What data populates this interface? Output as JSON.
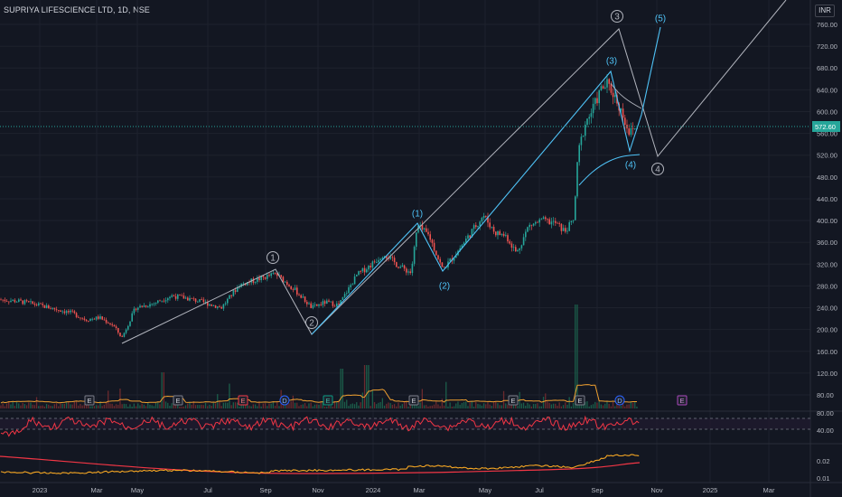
{
  "header": {
    "symbol_title": "SUPRIYA LIFESCIENCE LTD, 1D, NSE",
    "currency": "INR"
  },
  "colors": {
    "background": "#131722",
    "grid": "#1e222d",
    "candle_up": "#26a69a",
    "candle_down": "#ef5350",
    "wave_major": "#b2b5be",
    "wave_minor": "#4fc3f7",
    "last_price": "#26a69a",
    "oscillator": "#f23645",
    "volume_ma": "#f0a030",
    "indicator_line": "#f5a623",
    "indicator_baseline": "#f23645",
    "event_dividend": "#2962ff",
    "event_earnings": "#787b86",
    "event_earnings_red": "#f23645",
    "event_earnings_teal": "#089981",
    "event_future": "#ab47bc"
  },
  "price_axis": {
    "ticks": [
      "760.00",
      "720.00",
      "680.00",
      "640.00",
      "600.00",
      "560.00",
      "520.00",
      "480.00",
      "440.00",
      "400.00",
      "360.00",
      "320.00",
      "280.00",
      "240.00",
      "200.00",
      "160.00",
      "120.00",
      "80.00"
    ],
    "last_price": "572.60"
  },
  "oscillator_axis": {
    "ticks": [
      "80.00",
      "40.00"
    ]
  },
  "indicator_axis": {
    "ticks": [
      "0.02",
      "0.01"
    ]
  },
  "time_axis": {
    "ticks": [
      "2023",
      "Mar",
      "May",
      "Jul",
      "Sep",
      "Nov",
      "2024",
      "Mar",
      "May",
      "Jul",
      "Sep",
      "Nov",
      "2025",
      "Mar"
    ]
  },
  "events": [
    {
      "label": "E",
      "type": "earnings"
    },
    {
      "label": "E",
      "type": "earnings"
    },
    {
      "label": "E",
      "type": "earnings_red"
    },
    {
      "label": "D",
      "type": "dividend"
    },
    {
      "label": "E",
      "type": "earnings_teal"
    },
    {
      "label": "E",
      "type": "earnings"
    },
    {
      "label": "E",
      "type": "earnings"
    },
    {
      "label": "E",
      "type": "earnings"
    },
    {
      "label": "D",
      "type": "dividend"
    },
    {
      "label": "E",
      "type": "future"
    }
  ],
  "wave_labels": {
    "major": [
      "1",
      "2",
      "3",
      "4"
    ],
    "minor": [
      "(1)",
      "(2)",
      "(3)",
      "(4)",
      "(5)"
    ]
  }
}
